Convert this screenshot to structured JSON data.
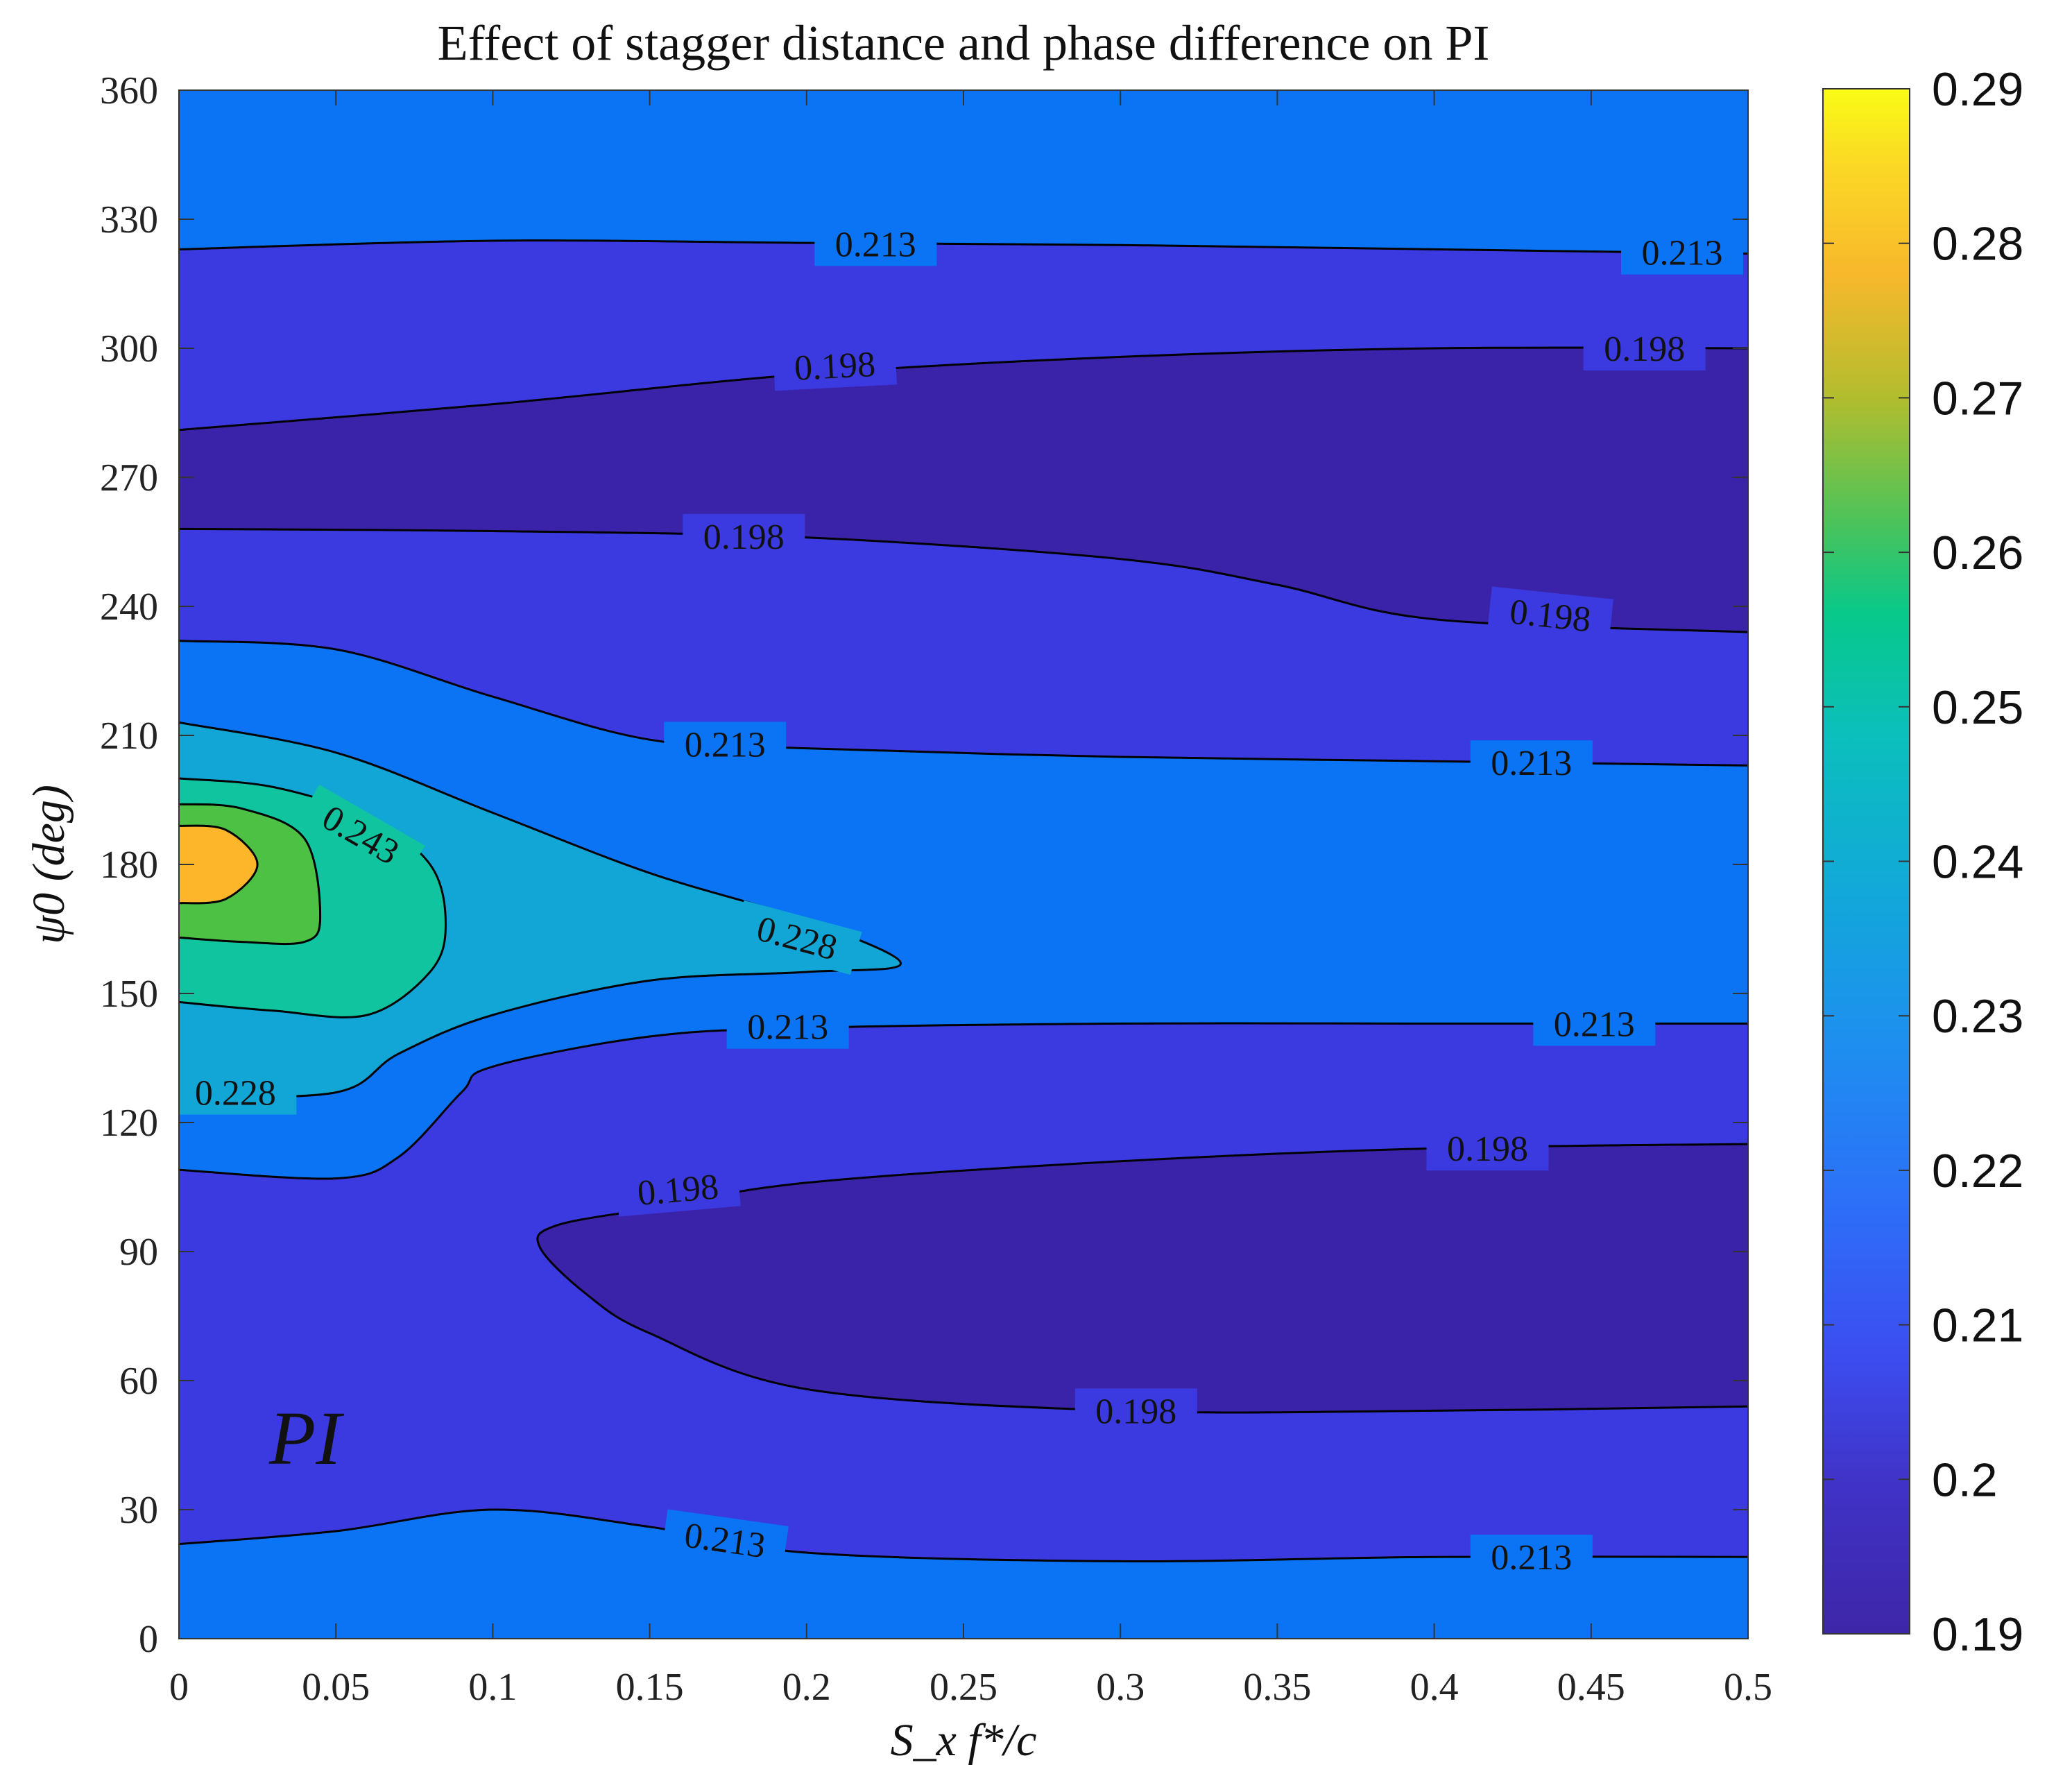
{
  "chart_data": {
    "type": "contour",
    "title": "Effect of stagger distance and phase difference on PI",
    "xlabel": "S_x f*/c",
    "ylabel": "ψ0 (deg)",
    "xlim": [
      0,
      0.5
    ],
    "ylim": [
      0,
      360
    ],
    "xticks": [
      "0",
      "0.05",
      "0.1",
      "0.15",
      "0.2",
      "0.25",
      "0.3",
      "0.35",
      "0.4",
      "0.45",
      "0.5"
    ],
    "yticks": [
      "0",
      "30",
      "60",
      "90",
      "120",
      "150",
      "180",
      "210",
      "240",
      "270",
      "300",
      "330",
      "360"
    ],
    "annotation": "PI",
    "colorbar": {
      "min": 0.19,
      "max": 0.29,
      "ticks": [
        "0.19",
        "0.2",
        "0.21",
        "0.22",
        "0.23",
        "0.24",
        "0.25",
        "0.26",
        "0.27",
        "0.28",
        "0.29"
      ]
    },
    "levels": [
      0.198,
      0.213,
      0.228,
      0.243,
      0.258
    ],
    "band_colors": [
      "#3a23a8",
      "#3b3ae0",
      "#0a74f5",
      "#11a6d6",
      "#10c4a0",
      "#4cc144",
      "#fdb52a"
    ],
    "contours": [
      {
        "level": 0.213,
        "points": [
          [
            0,
            323
          ],
          [
            0.1,
            325
          ],
          [
            0.2,
            324.5
          ],
          [
            0.3,
            324
          ],
          [
            0.4,
            323
          ],
          [
            0.5,
            322
          ]
        ]
      },
      {
        "level": 0.198,
        "points": [
          [
            0,
            281
          ],
          [
            0.1,
            287
          ],
          [
            0.2,
            294
          ],
          [
            0.3,
            298
          ],
          [
            0.4,
            300
          ],
          [
            0.5,
            300
          ]
        ]
      },
      {
        "level": 0.198,
        "points": [
          [
            0,
            258
          ],
          [
            0.1,
            257.5
          ],
          [
            0.2,
            256
          ],
          [
            0.3,
            251
          ],
          [
            0.35,
            245
          ],
          [
            0.4,
            237
          ],
          [
            0.5,
            234
          ]
        ]
      },
      {
        "level": 0.213,
        "points": [
          [
            0,
            232
          ],
          [
            0.05,
            230
          ],
          [
            0.1,
            219
          ],
          [
            0.15,
            209
          ],
          [
            0.2,
            207
          ],
          [
            0.3,
            205
          ],
          [
            0.4,
            204
          ],
          [
            0.5,
            203
          ]
        ]
      },
      {
        "level": 0.228,
        "points": [
          [
            0,
            213
          ],
          [
            0.05,
            206
          ],
          [
            0.1,
            192
          ],
          [
            0.15,
            178
          ],
          [
            0.2,
            167
          ],
          [
            0.23,
            157
          ],
          [
            0.2,
            155
          ],
          [
            0.15,
            153
          ],
          [
            0.1,
            145
          ],
          [
            0.07,
            136
          ],
          [
            0.05,
            127
          ],
          [
            0,
            126
          ]
        ]
      },
      {
        "level": 0.243,
        "points": [
          [
            0,
            200
          ],
          [
            0.03,
            198
          ],
          [
            0.06,
            191
          ],
          [
            0.08,
            180
          ],
          [
            0.085,
            166
          ],
          [
            0.08,
            155
          ],
          [
            0.06,
            145
          ],
          [
            0.03,
            146
          ],
          [
            0,
            148
          ]
        ]
      },
      {
        "level": 0.258,
        "points": [
          [
            0,
            194
          ],
          [
            0.02,
            193
          ],
          [
            0.04,
            186
          ],
          [
            0.045,
            168
          ],
          [
            0.04,
            162
          ],
          [
            0.02,
            162
          ],
          [
            0,
            163
          ]
        ]
      },
      {
        "level": 0.273,
        "points": [
          [
            0,
            189
          ],
          [
            0.015,
            188
          ],
          [
            0.025,
            180
          ],
          [
            0.015,
            172
          ],
          [
            0,
            171
          ]
        ]
      },
      {
        "level": 0.213,
        "points": [
          [
            0,
            109
          ],
          [
            0.05,
            107
          ],
          [
            0.07,
            112
          ],
          [
            0.09,
            127
          ],
          [
            0.1,
            133
          ],
          [
            0.15,
            140
          ],
          [
            0.2,
            142
          ],
          [
            0.3,
            143
          ],
          [
            0.4,
            143
          ],
          [
            0.5,
            143
          ]
        ]
      },
      {
        "level": 0.198,
        "points": [
          [
            0.5,
            115
          ],
          [
            0.4,
            114
          ],
          [
            0.3,
            111
          ],
          [
            0.2,
            106
          ],
          [
            0.15,
            100
          ],
          [
            0.12,
            96
          ],
          [
            0.115,
            91
          ],
          [
            0.13,
            80
          ],
          [
            0.15,
            71
          ],
          [
            0.2,
            58
          ],
          [
            0.3,
            53
          ],
          [
            0.4,
            53
          ],
          [
            0.5,
            54
          ]
        ]
      },
      {
        "level": 0.213,
        "points": [
          [
            0,
            22
          ],
          [
            0.05,
            25
          ],
          [
            0.1,
            30
          ],
          [
            0.15,
            26
          ],
          [
            0.2,
            20
          ],
          [
            0.3,
            18
          ],
          [
            0.4,
            19
          ],
          [
            0.5,
            19
          ]
        ]
      }
    ],
    "labels": [
      {
        "text": "0.213",
        "x": 0.222,
        "y": 324.3,
        "angle": 0
      },
      {
        "text": "0.213",
        "x": 0.479,
        "y": 322.3,
        "angle": 0
      },
      {
        "text": "0.198",
        "x": 0.209,
        "y": 296.0,
        "angle": -3
      },
      {
        "text": "0.198",
        "x": 0.467,
        "y": 300.0,
        "angle": 0
      },
      {
        "text": "0.198",
        "x": 0.18,
        "y": 256.3,
        "angle": 0
      },
      {
        "text": "0.198",
        "x": 0.437,
        "y": 238.0,
        "angle": 6
      },
      {
        "text": "0.213",
        "x": 0.174,
        "y": 208.0,
        "angle": 0
      },
      {
        "text": "0.213",
        "x": 0.431,
        "y": 203.7,
        "angle": 0
      },
      {
        "text": "0.243",
        "x": 0.058,
        "y": 187.0,
        "angle": 30
      },
      {
        "text": "0.228",
        "x": 0.197,
        "y": 163.0,
        "angle": 15
      },
      {
        "text": "0.228",
        "x": 0.018,
        "y": 127.0,
        "angle": 0
      },
      {
        "text": "0.213",
        "x": 0.194,
        "y": 142.3,
        "angle": 0
      },
      {
        "text": "0.213",
        "x": 0.451,
        "y": 143.0,
        "angle": 0
      },
      {
        "text": "0.198",
        "x": 0.159,
        "y": 104.5,
        "angle": -5
      },
      {
        "text": "0.198",
        "x": 0.417,
        "y": 114.0,
        "angle": 0
      },
      {
        "text": "0.198",
        "x": 0.305,
        "y": 53.0,
        "angle": 0
      },
      {
        "text": "0.213",
        "x": 0.174,
        "y": 23.0,
        "angle": 8
      },
      {
        "text": "0.213",
        "x": 0.431,
        "y": 19.0,
        "angle": 0
      }
    ]
  }
}
